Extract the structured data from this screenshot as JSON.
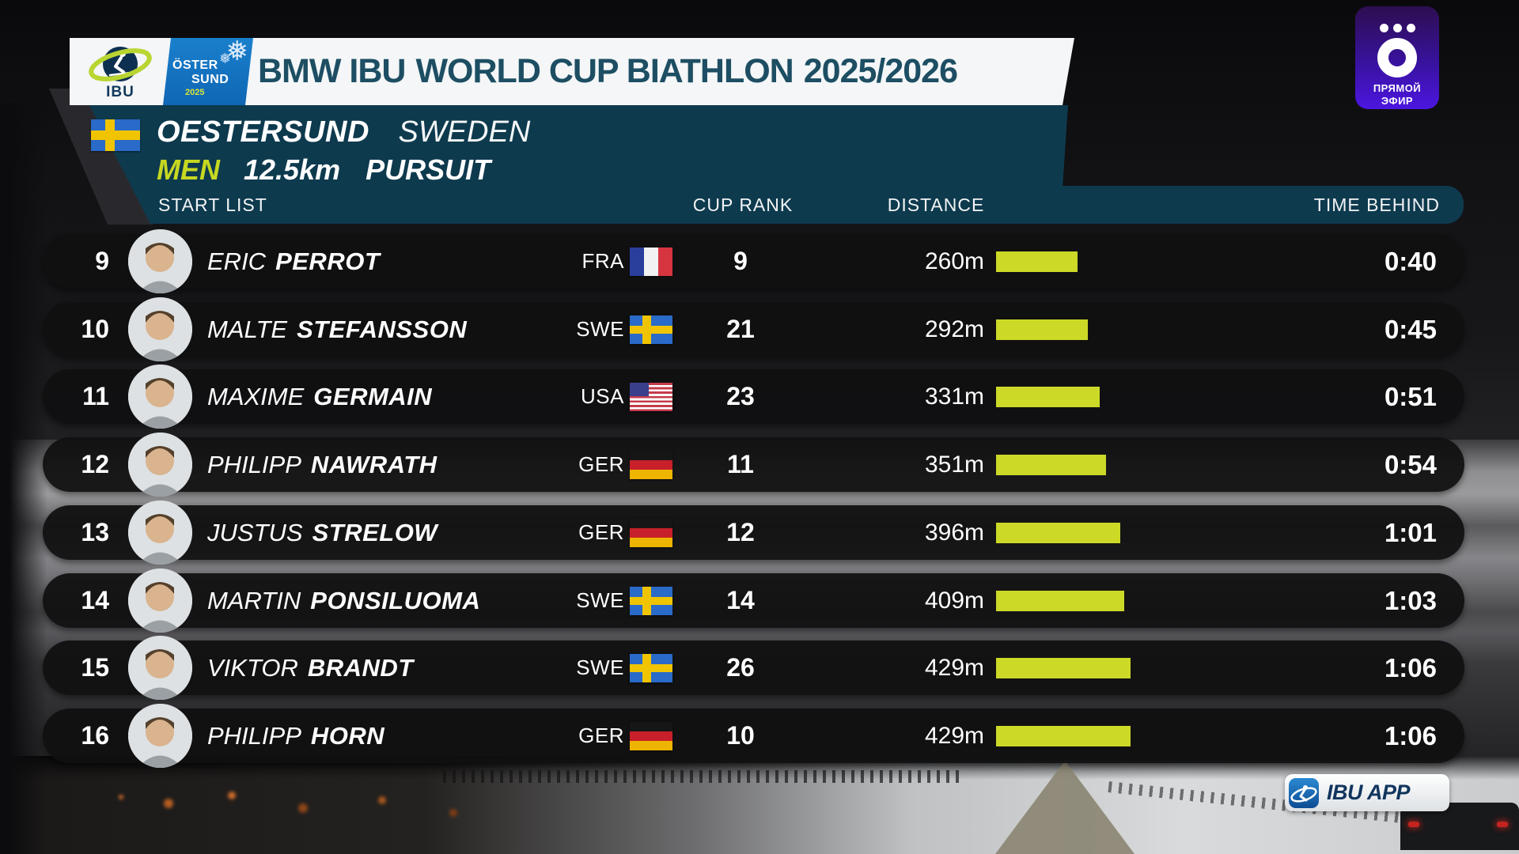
{
  "header": {
    "title_prefix": "BMW IBU",
    "title_main": "WORLD CUP BIATHLON",
    "title_season": "2025/2026",
    "ibu_logo_label": "IBU",
    "host_logo": {
      "top": "ÖSTER",
      "bottom": "SUND",
      "year": "2025"
    }
  },
  "live_badge": {
    "line1": "ПРЯМОЙ",
    "line2": "ЭФИР"
  },
  "event": {
    "location": "OESTERSUND",
    "country": "SWEDEN",
    "host_flag_code": "SWE",
    "category": "MEN",
    "race_distance": "12.5km",
    "discipline": "PURSUIT"
  },
  "table": {
    "panel_label": "START LIST",
    "columns": {
      "cup_rank": "CUP RANK",
      "distance": "DISTANCE",
      "time_behind": "TIME BEHIND"
    },
    "rows": [
      {
        "bib": "9",
        "first_name": "ERIC",
        "last_name": "PERROT",
        "country": "FRA",
        "cup_rank": "9",
        "distance": "260m",
        "distance_m": 260,
        "time_behind": "0:40"
      },
      {
        "bib": "10",
        "first_name": "MALTE",
        "last_name": "STEFANSSON",
        "country": "SWE",
        "cup_rank": "21",
        "distance": "292m",
        "distance_m": 292,
        "time_behind": "0:45"
      },
      {
        "bib": "11",
        "first_name": "MAXIME",
        "last_name": "GERMAIN",
        "country": "USA",
        "cup_rank": "23",
        "distance": "331m",
        "distance_m": 331,
        "time_behind": "0:51"
      },
      {
        "bib": "12",
        "first_name": "PHILIPP",
        "last_name": "NAWRATH",
        "country": "GER",
        "cup_rank": "11",
        "distance": "351m",
        "distance_m": 351,
        "time_behind": "0:54"
      },
      {
        "bib": "13",
        "first_name": "JUSTUS",
        "last_name": "STRELOW",
        "country": "GER",
        "cup_rank": "12",
        "distance": "396m",
        "distance_m": 396,
        "time_behind": "1:01"
      },
      {
        "bib": "14",
        "first_name": "MARTIN",
        "last_name": "PONSILUOMA",
        "country": "SWE",
        "cup_rank": "14",
        "distance": "409m",
        "distance_m": 409,
        "time_behind": "1:03"
      },
      {
        "bib": "15",
        "first_name": "VIKTOR",
        "last_name": "BRANDT",
        "country": "SWE",
        "cup_rank": "26",
        "distance": "429m",
        "distance_m": 429,
        "time_behind": "1:06"
      },
      {
        "bib": "16",
        "first_name": "PHILIPP",
        "last_name": "HORN",
        "country": "GER",
        "cup_rank": "10",
        "distance": "429m",
        "distance_m": 429,
        "time_behind": "1:06"
      }
    ]
  },
  "app_badge": {
    "label": "IBU APP"
  },
  "colors": {
    "accent_yellow": "#ccd926",
    "panel_teal": "#0e3a4e",
    "row_background": "#101011",
    "title_navy": "#1d4e63",
    "live_badge_purple": "#4c16e0"
  }
}
